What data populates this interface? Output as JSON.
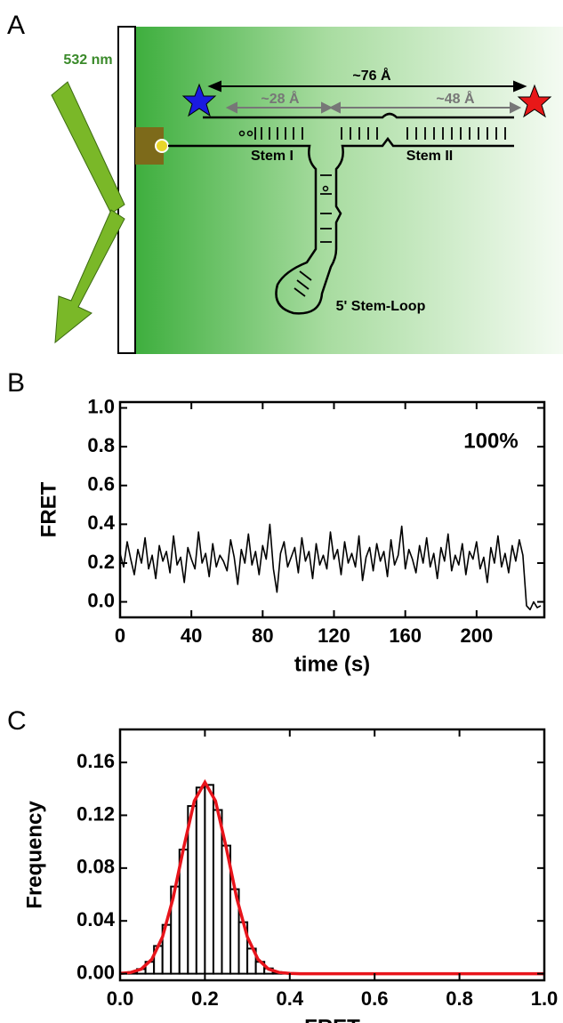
{
  "panel_labels": [
    "A",
    "B",
    "C"
  ],
  "diagram": {
    "wavelength": "532 nm",
    "total_distance": "~76 Å",
    "distance_1": "~28 Å",
    "distance_2": "~48 Å",
    "stem_1": "Stem I",
    "stem_2": "Stem II",
    "stem_loop": "5' Stem-Loop"
  },
  "chart_data": [
    {
      "type": "line",
      "xlabel": "time (s)",
      "ylabel": "FRET",
      "annotation": "100%",
      "xlim": [
        0,
        238
      ],
      "xticks": [
        0,
        40,
        80,
        120,
        160,
        200
      ],
      "ylim": [
        -0.08,
        1.03
      ],
      "yticks": [
        {
          "value": 0,
          "label": "0.0"
        },
        0.2,
        0.4,
        0.6,
        0.8,
        {
          "value": 1,
          "label": "1.0"
        }
      ],
      "color": "#000000",
      "x": [
        0,
        2,
        4,
        6,
        8,
        10,
        12,
        14,
        16,
        18,
        20,
        22,
        24,
        26,
        28,
        30,
        32,
        34,
        36,
        38,
        40,
        42,
        44,
        46,
        48,
        50,
        52,
        54,
        56,
        58,
        60,
        62,
        64,
        66,
        68,
        70,
        72,
        74,
        76,
        78,
        80,
        82,
        84,
        86,
        88,
        90,
        92,
        94,
        96,
        98,
        100,
        102,
        104,
        106,
        108,
        110,
        112,
        114,
        116,
        118,
        120,
        122,
        124,
        126,
        128,
        130,
        132,
        134,
        136,
        138,
        140,
        142,
        144,
        146,
        148,
        150,
        152,
        154,
        156,
        158,
        160,
        162,
        164,
        166,
        168,
        170,
        172,
        174,
        176,
        178,
        180,
        182,
        184,
        186,
        188,
        190,
        192,
        194,
        196,
        198,
        200,
        202,
        204,
        206,
        208,
        210,
        212,
        214,
        216,
        218,
        220,
        222,
        224,
        226,
        228,
        230,
        232,
        234,
        236
      ],
      "values": [
        0.25,
        0.18,
        0.31,
        0.22,
        0.14,
        0.27,
        0.2,
        0.33,
        0.17,
        0.24,
        0.12,
        0.29,
        0.21,
        0.26,
        0.15,
        0.34,
        0.19,
        0.23,
        0.1,
        0.28,
        0.22,
        0.17,
        0.36,
        0.2,
        0.25,
        0.13,
        0.3,
        0.18,
        0.24,
        0.21,
        0.16,
        0.32,
        0.23,
        0.09,
        0.27,
        0.2,
        0.35,
        0.19,
        0.26,
        0.14,
        0.29,
        0.22,
        0.4,
        0.17,
        0.05,
        0.25,
        0.31,
        0.18,
        0.23,
        0.28,
        0.15,
        0.33,
        0.21,
        0.26,
        0.12,
        0.3,
        0.19,
        0.24,
        0.17,
        0.36,
        0.22,
        0.27,
        0.14,
        0.31,
        0.2,
        0.25,
        0.18,
        0.34,
        0.11,
        0.23,
        0.28,
        0.16,
        0.3,
        0.21,
        0.26,
        0.13,
        0.32,
        0.19,
        0.24,
        0.39,
        0.17,
        0.27,
        0.22,
        0.15,
        0.29,
        0.2,
        0.33,
        0.18,
        0.25,
        0.12,
        0.28,
        0.21,
        0.35,
        0.16,
        0.24,
        0.19,
        0.3,
        0.14,
        0.26,
        0.22,
        0.31,
        0.17,
        0.23,
        0.1,
        0.28,
        0.2,
        0.34,
        0.18,
        0.25,
        0.15,
        0.29,
        0.21,
        0.32,
        0.24,
        -0.02,
        -0.04,
        0.0,
        -0.03,
        -0.02
      ]
    },
    {
      "type": "histogram",
      "xlabel": "FRET",
      "ylabel": "Frequency",
      "xlim": [
        0,
        1
      ],
      "xticks": [
        {
          "value": 0,
          "label": "0.0"
        },
        0.2,
        0.4,
        0.6,
        0.8,
        {
          "value": 1,
          "label": "1.0"
        }
      ],
      "ylim": [
        -0.005,
        0.185
      ],
      "yticks": [
        {
          "value": 0,
          "label": "0.00"
        },
        0.04,
        0.08,
        0.12,
        0.16
      ],
      "color": "#ffffff",
      "edge_color": "#000000",
      "bins": [
        0,
        0.02,
        0.04,
        0.06,
        0.08,
        0.1,
        0.12,
        0.14,
        0.16,
        0.18,
        0.2,
        0.22,
        0.24,
        0.26,
        0.28,
        0.3,
        0.32,
        0.34,
        0.36,
        0.38,
        0.4,
        0.42,
        0.44
      ],
      "values": [
        0.0004,
        0.0012,
        0.0035,
        0.009,
        0.021,
        0.037,
        0.066,
        0.094,
        0.127,
        0.141,
        0.143,
        0.124,
        0.097,
        0.064,
        0.039,
        0.019,
        0.009,
        0.004,
        0.0012,
        0.0004,
        0.0002,
        0.0002
      ],
      "fit": {
        "color": "#e8141b",
        "x": [
          0,
          0.025,
          0.05,
          0.075,
          0.1,
          0.125,
          0.15,
          0.175,
          0.2,
          0.225,
          0.25,
          0.275,
          0.3,
          0.325,
          0.35,
          0.375,
          0.4,
          0.425,
          1
        ],
        "values": [
          0.0002,
          0.0009,
          0.0035,
          0.011,
          0.0278,
          0.0572,
          0.0957,
          0.1308,
          0.145,
          0.1308,
          0.0957,
          0.0572,
          0.0278,
          0.011,
          0.0035,
          0.0009,
          0.0002,
          0,
          0
        ]
      }
    }
  ]
}
